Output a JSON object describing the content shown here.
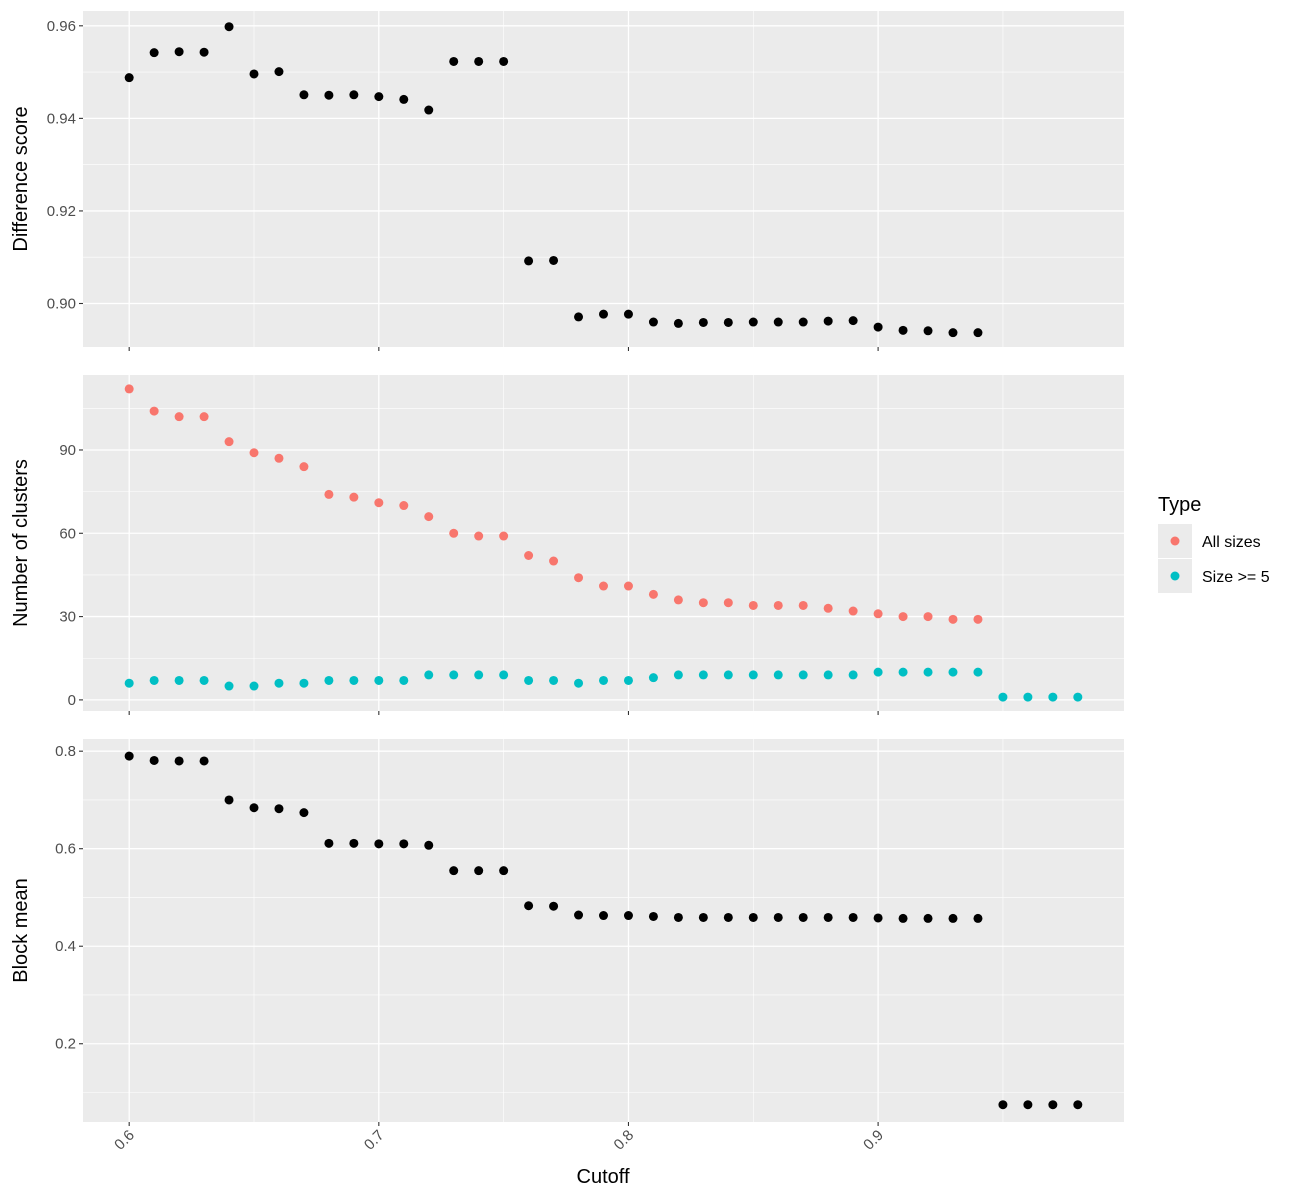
{
  "chart_data": {
    "type": "scatter",
    "x_label": "Cutoff",
    "x_ticks": [
      0.6,
      0.7,
      0.8,
      0.9
    ],
    "x_tick_labels": [
      "0.6",
      "0.7",
      "0.8",
      "0.9"
    ],
    "xlim": [
      0.5815,
      0.9985
    ],
    "legend": {
      "title": "Type",
      "position": "right",
      "entries": [
        {
          "label": "All sizes",
          "color": "#F8766D"
        },
        {
          "label": "Size >= 5",
          "color": "#00BFC4"
        }
      ]
    },
    "panels": [
      {
        "ylabel": "Difference score",
        "ylim": [
          0.8906,
          0.9632
        ],
        "y_ticks": [
          0.9,
          0.92,
          0.94,
          0.96
        ],
        "y_tick_labels": [
          "0.90",
          "0.92",
          "0.94",
          "0.96"
        ],
        "series": [
          {
            "color": "#000000",
            "x": [
              0.6,
              0.61,
              0.62,
              0.63,
              0.64,
              0.65,
              0.66,
              0.67,
              0.68,
              0.69,
              0.7,
              0.71,
              0.72,
              0.73,
              0.74,
              0.75,
              0.76,
              0.77,
              0.78,
              0.79,
              0.8,
              0.81,
              0.82,
              0.83,
              0.84,
              0.85,
              0.86,
              0.87,
              0.88,
              0.89,
              0.9,
              0.91,
              0.92,
              0.93,
              0.94
            ],
            "y": [
              0.9488,
              0.9542,
              0.9544,
              0.9543,
              0.9598,
              0.9496,
              0.9501,
              0.9451,
              0.945,
              0.9451,
              0.9447,
              0.9441,
              0.9418,
              0.9523,
              0.9523,
              0.9523,
              0.9092,
              0.9093,
              0.8971,
              0.8977,
              0.8977,
              0.896,
              0.8957,
              0.8959,
              0.8959,
              0.896,
              0.896,
              0.896,
              0.8962,
              0.8963,
              0.8949,
              0.8942,
              0.8941,
              0.8937,
              0.8937
            ]
          }
        ]
      },
      {
        "ylabel": "Number of clusters",
        "ylim": [
          -4,
          117
        ],
        "y_ticks": [
          0,
          30,
          60,
          90
        ],
        "y_tick_labels": [
          "0",
          "30",
          "60",
          "90"
        ],
        "series": [
          {
            "name": "All sizes",
            "color": "#F8766D",
            "x": [
              0.6,
              0.61,
              0.62,
              0.63,
              0.64,
              0.65,
              0.66,
              0.67,
              0.68,
              0.69,
              0.7,
              0.71,
              0.72,
              0.73,
              0.74,
              0.75,
              0.76,
              0.77,
              0.78,
              0.79,
              0.8,
              0.81,
              0.82,
              0.83,
              0.84,
              0.85,
              0.86,
              0.87,
              0.88,
              0.89,
              0.9,
              0.91,
              0.92,
              0.93,
              0.94
            ],
            "y": [
              112,
              104,
              102,
              102,
              93,
              89,
              87,
              84,
              74,
              73,
              71,
              70,
              66,
              60,
              59,
              59,
              52,
              50,
              44,
              41,
              41,
              38,
              36,
              35,
              35,
              34,
              34,
              34,
              33,
              32,
              31,
              30,
              30,
              29,
              29
            ]
          },
          {
            "name": "Size >= 5",
            "color": "#00BFC4",
            "x": [
              0.6,
              0.61,
              0.62,
              0.63,
              0.64,
              0.65,
              0.66,
              0.67,
              0.68,
              0.69,
              0.7,
              0.71,
              0.72,
              0.73,
              0.74,
              0.75,
              0.76,
              0.77,
              0.78,
              0.79,
              0.8,
              0.81,
              0.82,
              0.83,
              0.84,
              0.85,
              0.86,
              0.87,
              0.88,
              0.89,
              0.9,
              0.91,
              0.92,
              0.93,
              0.94,
              0.95,
              0.96,
              0.97,
              0.98
            ],
            "y": [
              6,
              7,
              7,
              7,
              5,
              5,
              6,
              6,
              7,
              7,
              7,
              7,
              9,
              9,
              9,
              9,
              7,
              7,
              6,
              7,
              7,
              8,
              9,
              9,
              9,
              9,
              9,
              9,
              9,
              9,
              10,
              10,
              10,
              10,
              10,
              1,
              1,
              1,
              1
            ]
          }
        ]
      },
      {
        "ylabel": "Block mean",
        "ylim": [
          0.0395,
          0.825
        ],
        "y_ticks": [
          0.2,
          0.4,
          0.6,
          0.8
        ],
        "y_tick_labels": [
          "0.2",
          "0.4",
          "0.6",
          "0.8"
        ],
        "series": [
          {
            "color": "#000000",
            "x": [
              0.6,
              0.61,
              0.62,
              0.63,
              0.64,
              0.65,
              0.66,
              0.67,
              0.68,
              0.69,
              0.7,
              0.71,
              0.72,
              0.73,
              0.74,
              0.75,
              0.76,
              0.77,
              0.78,
              0.79,
              0.8,
              0.81,
              0.82,
              0.83,
              0.84,
              0.85,
              0.86,
              0.87,
              0.88,
              0.89,
              0.9,
              0.91,
              0.92,
              0.93,
              0.94,
              0.95,
              0.96,
              0.97,
              0.98
            ],
            "y": [
              0.79,
              0.781,
              0.78,
              0.78,
              0.7,
              0.684,
              0.682,
              0.674,
              0.611,
              0.611,
              0.61,
              0.61,
              0.607,
              0.555,
              0.555,
              0.555,
              0.483,
              0.482,
              0.464,
              0.463,
              0.463,
              0.461,
              0.459,
              0.459,
              0.459,
              0.459,
              0.459,
              0.459,
              0.459,
              0.459,
              0.458,
              0.457,
              0.457,
              0.457,
              0.457,
              0.075,
              0.075,
              0.075,
              0.075
            ]
          }
        ]
      }
    ]
  }
}
